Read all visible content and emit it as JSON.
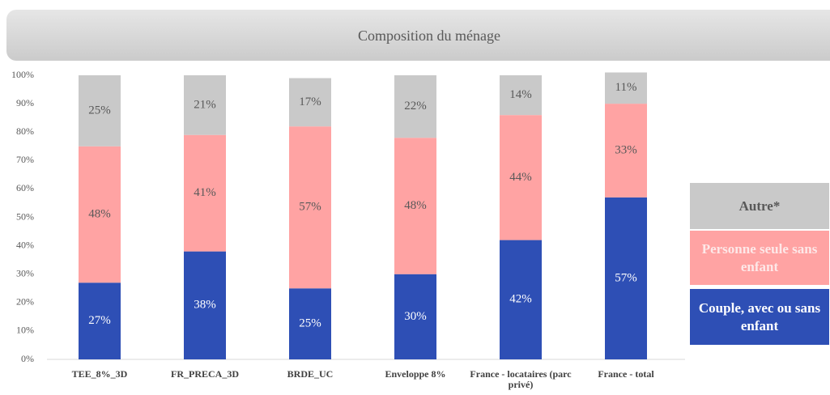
{
  "chart_data": {
    "type": "stacked_bar",
    "title": "Composition du ménage",
    "categories": [
      "TEE_8%_3D",
      "FR_PRECA_3D",
      "BRDE_UC",
      "Enveloppe 8%",
      "France - locataires (parc privé)",
      "France - total"
    ],
    "series": [
      {
        "name": "Couple, avec ou sans enfant",
        "color": "#2e4fb5",
        "values": [
          27,
          38,
          25,
          30,
          42,
          57
        ],
        "value_labels": [
          "27%",
          "38%",
          "25%",
          "30%",
          "42%",
          "57%"
        ]
      },
      {
        "name": "Personne seule sans enfant",
        "color": "#ffa3a3",
        "values": [
          48,
          41,
          57,
          48,
          44,
          33
        ],
        "value_labels": [
          "48%",
          "41%",
          "57%",
          "48%",
          "44%",
          "33%"
        ]
      },
      {
        "name": "Autre*",
        "color": "#c9c9c9",
        "values": [
          25,
          21,
          17,
          22,
          14,
          11
        ],
        "value_labels": [
          "25%",
          "21%",
          "17%",
          "22%",
          "14%",
          "11%"
        ]
      }
    ],
    "ylim": [
      0,
      100
    ],
    "yticks": [
      {
        "value": 0,
        "label": "0%"
      },
      {
        "value": 10,
        "label": "10%"
      },
      {
        "value": 20,
        "label": "20%"
      },
      {
        "value": 30,
        "label": "30%"
      },
      {
        "value": 40,
        "label": "40%"
      },
      {
        "value": 50,
        "label": "50%"
      },
      {
        "value": 60,
        "label": "60%"
      },
      {
        "value": 70,
        "label": "70%"
      },
      {
        "value": 80,
        "label": "80%"
      },
      {
        "value": 90,
        "label": "90%"
      },
      {
        "value": 100,
        "label": "100%"
      }
    ],
    "grid": false
  }
}
